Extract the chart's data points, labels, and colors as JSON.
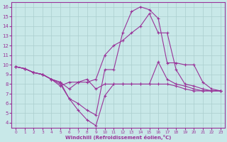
{
  "xlabel": "Windchill (Refroidissement éolien,°C)",
  "bg_color": "#c8e8e8",
  "grid_color": "#aacece",
  "line_color": "#993399",
  "xlim": [
    -0.5,
    23.5
  ],
  "ylim": [
    3.5,
    16.5
  ],
  "xticks": [
    0,
    1,
    2,
    3,
    4,
    5,
    6,
    7,
    8,
    9,
    10,
    11,
    12,
    13,
    14,
    15,
    16,
    17,
    18,
    19,
    20,
    21,
    22,
    23
  ],
  "yticks": [
    4,
    5,
    6,
    7,
    8,
    9,
    10,
    11,
    12,
    13,
    14,
    15,
    16
  ],
  "line1_x": [
    0,
    1,
    2,
    3,
    4,
    5,
    6,
    7,
    8,
    9,
    10,
    11,
    12,
    13,
    14,
    15,
    16,
    17,
    18,
    19,
    20,
    21,
    22,
    23
  ],
  "line1_y": [
    9.8,
    9.6,
    9.2,
    9.0,
    8.5,
    8.0,
    6.5,
    6.0,
    5.3,
    4.8,
    9.5,
    9.5,
    13.3,
    15.5,
    16.0,
    15.7,
    14.8,
    10.2,
    10.2,
    10.0,
    10.0,
    8.2,
    7.5,
    7.3
  ],
  "line2_x": [
    0,
    1,
    2,
    3,
    4,
    5,
    6,
    7,
    8,
    9,
    10,
    11,
    12,
    13,
    14,
    15,
    16,
    17,
    18,
    19,
    20,
    21,
    22,
    23
  ],
  "line2_y": [
    9.8,
    9.6,
    9.2,
    9.0,
    8.5,
    8.2,
    7.5,
    8.2,
    8.2,
    8.5,
    11.0,
    12.0,
    12.5,
    13.3,
    14.0,
    15.3,
    13.3,
    13.3,
    9.5,
    8.0,
    7.8,
    7.5,
    7.3,
    7.3
  ],
  "line3_x": [
    0,
    1,
    2,
    3,
    4,
    5,
    6,
    7,
    8,
    9,
    10,
    11,
    12,
    13,
    14,
    15,
    16,
    17,
    18,
    19,
    20,
    21,
    22,
    23
  ],
  "line3_y": [
    9.8,
    9.6,
    9.2,
    9.0,
    8.5,
    7.8,
    8.2,
    8.2,
    8.5,
    7.5,
    8.0,
    8.0,
    8.0,
    8.0,
    8.0,
    8.0,
    10.3,
    8.5,
    8.0,
    7.8,
    7.5,
    7.3,
    7.3,
    7.3
  ],
  "line4_x": [
    0,
    1,
    2,
    3,
    4,
    5,
    6,
    7,
    8,
    9,
    10,
    11,
    12,
    13,
    14,
    15,
    16,
    17,
    18,
    19,
    20,
    21,
    22,
    23
  ],
  "line4_y": [
    9.8,
    9.6,
    9.2,
    9.0,
    8.5,
    8.2,
    6.5,
    5.3,
    4.3,
    3.7,
    6.8,
    8.0,
    8.0,
    8.0,
    8.0,
    8.0,
    8.0,
    8.0,
    7.8,
    7.5,
    7.3,
    7.3,
    7.3,
    7.3
  ]
}
